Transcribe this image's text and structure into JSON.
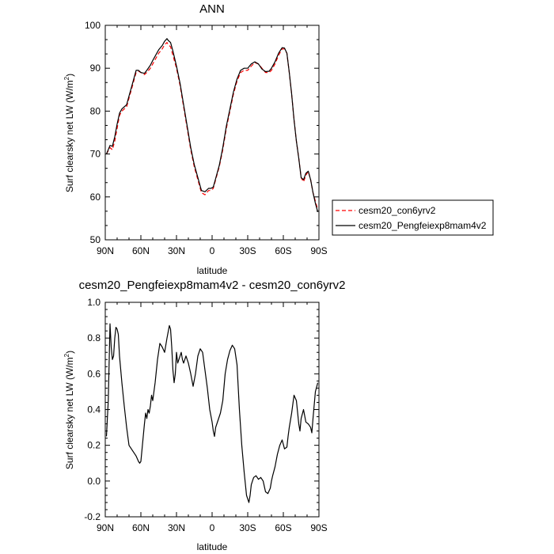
{
  "chart_data": [
    {
      "type": "line",
      "title": "ANN",
      "xlabel": "latitude",
      "ylabel": "Surf clearsky net LW (W/m²)",
      "xlim": [
        90,
        -90
      ],
      "ylim": [
        50,
        100
      ],
      "xticks": [
        90,
        60,
        30,
        0,
        -30,
        -60,
        -90
      ],
      "xtick_labels": [
        "90N",
        "60N",
        "30N",
        "0",
        "30S",
        "60S",
        "90S"
      ],
      "yticks": [
        50,
        60,
        70,
        80,
        90,
        100
      ],
      "ytick_labels": [
        "50",
        "60",
        "70",
        "80",
        "90",
        "100"
      ],
      "legend_position": "right",
      "series": [
        {
          "name": "cesm20_con6yrv2",
          "color": "#ff0000",
          "dash": "dashed",
          "x": [
            89,
            86,
            84,
            82,
            80,
            78,
            76,
            74,
            72,
            70,
            68,
            66,
            64,
            62,
            60,
            57,
            55,
            52,
            50,
            47,
            45,
            42,
            40,
            38,
            37,
            35,
            33,
            30,
            27,
            24,
            21,
            18,
            15,
            12,
            9,
            6,
            3,
            1,
            -1,
            -3,
            -6,
            -9,
            -12,
            -15,
            -18,
            -21,
            -24,
            -27,
            -30,
            -33,
            -36,
            -39,
            -42,
            -45,
            -48,
            -50,
            -53,
            -56,
            -59,
            -61,
            -63,
            -65,
            -67,
            -69,
            -71,
            -73,
            -75,
            -77,
            -79,
            -81,
            -83,
            -85,
            -87,
            -89
          ],
          "y": [
            70,
            71.5,
            71,
            73,
            76,
            79,
            80,
            80.5,
            81,
            83,
            85,
            87,
            89,
            89.3,
            89,
            88.5,
            89,
            90,
            91,
            92.5,
            93.5,
            94.5,
            95.5,
            96,
            95.5,
            95,
            93,
            90,
            86,
            81,
            76,
            71,
            67,
            64,
            61,
            60.5,
            61.5,
            61.5,
            62,
            64,
            67,
            71,
            76,
            80,
            84,
            87,
            89,
            89.5,
            89.5,
            90.5,
            91.3,
            91,
            90,
            89,
            89,
            89.5,
            91,
            93,
            94.5,
            94.5,
            93.5,
            89,
            84,
            78,
            73,
            69,
            64.5,
            63.5,
            65,
            66,
            64,
            61,
            59,
            57
          ]
        },
        {
          "name": "cesm20_Pengfeiexp8mam4v2",
          "color": "#000000",
          "dash": "solid",
          "x": [
            89,
            86,
            84,
            82,
            80,
            78,
            76,
            74,
            72,
            70,
            68,
            66,
            64,
            62,
            60,
            57,
            55,
            52,
            50,
            47,
            45,
            42,
            40,
            38,
            37,
            35,
            33,
            30,
            27,
            24,
            21,
            18,
            15,
            12,
            9,
            6,
            3,
            1,
            -1,
            -3,
            -6,
            -9,
            -12,
            -15,
            -18,
            -21,
            -24,
            -27,
            -30,
            -33,
            -36,
            -39,
            -42,
            -45,
            -48,
            -50,
            -53,
            -56,
            -59,
            -61,
            -63,
            -65,
            -67,
            -69,
            -71,
            -73,
            -75,
            -77,
            -79,
            -81,
            -83,
            -85,
            -87,
            -89
          ],
          "y": [
            70,
            72,
            71.8,
            74,
            77,
            79.5,
            80.5,
            81,
            81.5,
            83.5,
            85.5,
            87.5,
            89.5,
            89.5,
            89,
            88.8,
            89.5,
            90.7,
            91.8,
            93.3,
            94.3,
            95.3,
            96.3,
            96.9,
            96.5,
            96,
            94,
            90.5,
            86.5,
            81.5,
            76.5,
            71.5,
            67.5,
            64.5,
            61.5,
            61.2,
            62,
            62,
            62.3,
            64.3,
            67.3,
            71.5,
            76.5,
            80.5,
            84.5,
            87.5,
            89.5,
            90,
            90,
            91,
            91.5,
            91,
            89.8,
            89.2,
            89.3,
            90,
            91.5,
            93.5,
            94.8,
            94.7,
            93.5,
            89,
            84,
            78,
            73,
            69,
            64.5,
            64,
            65.5,
            66,
            64,
            61,
            58.5,
            56.5
          ]
        }
      ]
    },
    {
      "type": "line",
      "title": "cesm20_Pengfeiexp8mam4v2 - cesm20_con6yrv2",
      "xlabel": "latitude",
      "ylabel": "Surf clearsky net LW (W/m²)",
      "xlim": [
        90,
        -90
      ],
      "ylim": [
        -0.2,
        1.0
      ],
      "xticks": [
        90,
        60,
        30,
        0,
        -30,
        -60,
        -90
      ],
      "xtick_labels": [
        "90N",
        "60N",
        "30N",
        "0",
        "30S",
        "60S",
        "90S"
      ],
      "yticks": [
        -0.2,
        0,
        0.2,
        0.4,
        0.6,
        0.8,
        1.0
      ],
      "ytick_labels": [
        "-0.2",
        "0.0",
        "0.2",
        "0.4",
        "0.6",
        "0.8",
        "1.0"
      ],
      "series": [
        {
          "color": "#000000",
          "dash": "solid",
          "x": [
            89,
            87.5,
            86,
            85,
            84,
            83,
            82,
            81,
            80,
            79,
            78,
            76,
            74,
            72,
            70,
            68,
            66,
            64,
            62,
            61,
            60,
            59,
            58,
            57,
            56,
            55,
            54,
            53,
            52,
            51,
            50,
            48,
            46,
            44,
            42,
            40,
            38,
            36,
            35,
            34,
            33,
            32,
            31,
            30,
            29,
            28,
            27,
            26,
            25,
            24,
            22,
            20,
            18,
            16,
            14,
            12,
            10,
            8,
            6,
            4,
            2,
            0,
            -1,
            -2,
            -3,
            -5,
            -7,
            -9,
            -11,
            -13,
            -15,
            -17,
            -19,
            -21,
            -23,
            -25,
            -27,
            -29,
            -31,
            -32,
            -33,
            -34,
            -35,
            -37,
            -39,
            -41,
            -43,
            -44,
            -45,
            -47,
            -49,
            -50,
            -51,
            -53,
            -55,
            -57,
            -59,
            -61,
            -63,
            -64,
            -65,
            -67,
            -69,
            -71,
            -73,
            -74,
            -75,
            -77,
            -79,
            -81,
            -83,
            -84,
            -85,
            -87,
            -89
          ],
          "y": [
            0.25,
            0.45,
            0.88,
            0.75,
            0.68,
            0.7,
            0.8,
            0.86,
            0.85,
            0.82,
            0.7,
            0.55,
            0.42,
            0.3,
            0.2,
            0.18,
            0.16,
            0.14,
            0.11,
            0.1,
            0.11,
            0.18,
            0.25,
            0.32,
            0.38,
            0.35,
            0.4,
            0.38,
            0.42,
            0.48,
            0.45,
            0.55,
            0.68,
            0.77,
            0.75,
            0.72,
            0.8,
            0.87,
            0.85,
            0.75,
            0.62,
            0.55,
            0.6,
            0.72,
            0.66,
            0.68,
            0.7,
            0.72,
            0.68,
            0.66,
            0.7,
            0.66,
            0.6,
            0.53,
            0.6,
            0.7,
            0.74,
            0.72,
            0.62,
            0.52,
            0.4,
            0.33,
            0.28,
            0.25,
            0.3,
            0.34,
            0.38,
            0.45,
            0.6,
            0.68,
            0.73,
            0.76,
            0.74,
            0.65,
            0.4,
            0.2,
            0.05,
            -0.08,
            -0.12,
            -0.08,
            -0.02,
            0.0,
            0.02,
            0.03,
            0.01,
            0.02,
            0.0,
            -0.03,
            -0.06,
            -0.07,
            -0.04,
            0.0,
            0.03,
            0.08,
            0.15,
            0.2,
            0.23,
            0.18,
            0.19,
            0.25,
            0.3,
            0.38,
            0.48,
            0.45,
            0.32,
            0.28,
            0.35,
            0.4,
            0.33,
            0.32,
            0.3,
            0.27,
            0.35,
            0.5,
            0.55
          ]
        }
      ]
    }
  ]
}
